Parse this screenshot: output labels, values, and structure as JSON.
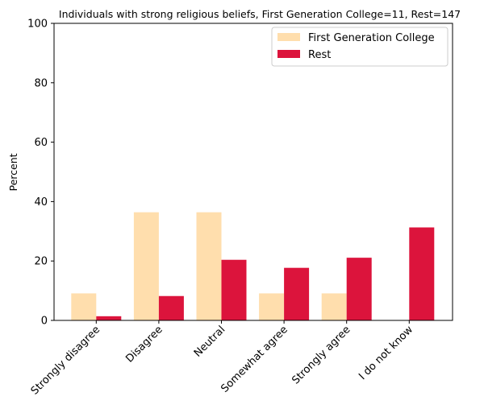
{
  "chart_data": {
    "type": "bar",
    "title": "Individuals with strong religious beliefs, First Generation College=11, Rest=147",
    "xlabel": "",
    "ylabel": "Percent",
    "ylim": [
      0,
      100
    ],
    "yticks": [
      0,
      20,
      40,
      60,
      80,
      100
    ],
    "grid": false,
    "legend_position": "top-right",
    "categories": [
      "Strongly disagree",
      "Disagree",
      "Neutral",
      "Somewhat agree",
      "Strongly agree",
      "I do not know"
    ],
    "series": [
      {
        "name": "First Generation College",
        "color": "#FFDEAD",
        "values": [
          9.1,
          36.4,
          36.4,
          9.1,
          9.1,
          0
        ]
      },
      {
        "name": "Rest",
        "color": "#DC143C",
        "values": [
          1.4,
          8.2,
          20.4,
          17.7,
          21.1,
          31.3
        ]
      }
    ]
  }
}
